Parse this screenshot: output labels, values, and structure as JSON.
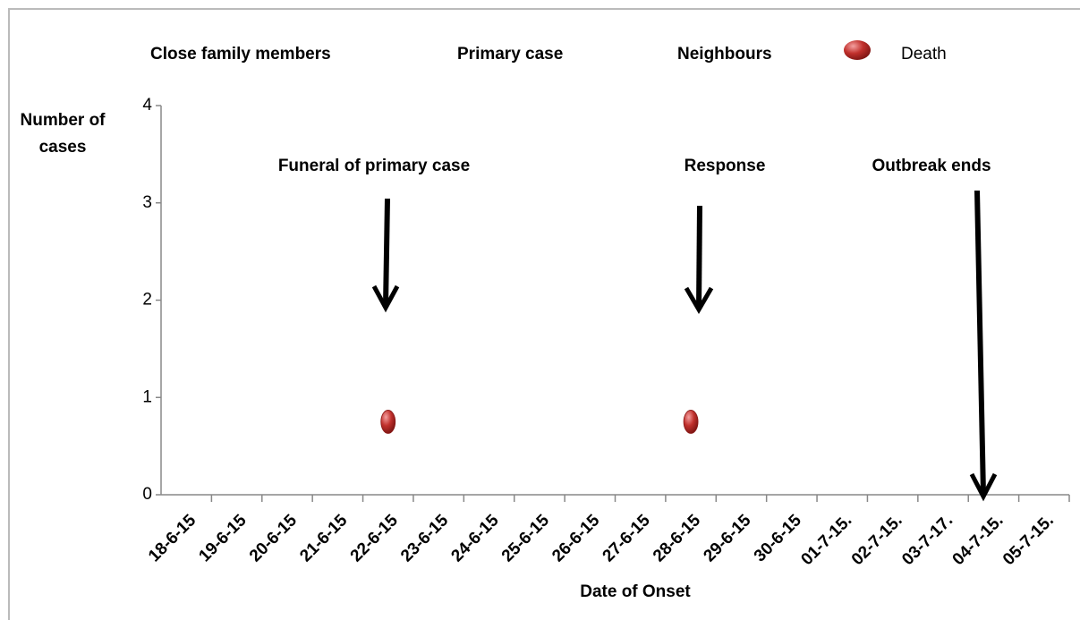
{
  "chart_data": {
    "type": "scatter",
    "y_label": "Number of cases",
    "x_label": "Date of Onset",
    "categories": [
      "18-6-15",
      "19-6-15",
      "20-6-15",
      "21-6-15",
      "22-6-15",
      "23-6-15",
      "24-6-15",
      "25-6-15",
      "26-6-15",
      "27-6-15",
      "28-6-15",
      "29-6-15",
      "30-6-15",
      "01-7-15.",
      "02-7-15.",
      "03-7-17.",
      "04-7-15.",
      "05-7-15."
    ],
    "series": [
      {
        "name": "Close family members"
      },
      {
        "name": "Primary case"
      },
      {
        "name": "Neighbours"
      },
      {
        "name": "Death",
        "color": "#c0302c",
        "values": [
          null,
          null,
          null,
          null,
          0.75,
          null,
          null,
          null,
          null,
          null,
          0.75,
          null,
          null,
          null,
          null,
          null,
          null,
          null
        ]
      }
    ],
    "annotations": [
      "Funeral of primary case",
      "Response",
      "Outbreak ends"
    ],
    "ylim": [
      0,
      4
    ],
    "yticks": [
      0,
      1,
      2,
      3,
      4
    ]
  }
}
